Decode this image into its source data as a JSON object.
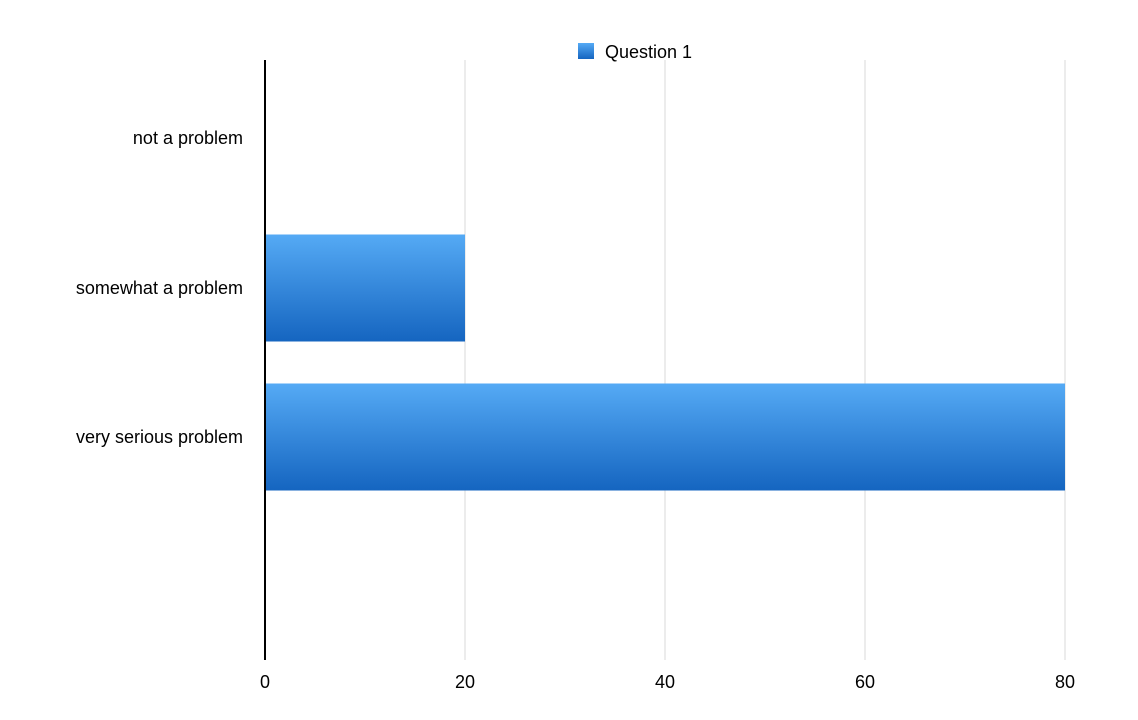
{
  "chart_data": {
    "type": "bar",
    "orientation": "horizontal",
    "title": "",
    "xlabel": "",
    "ylabel": "",
    "categories": [
      "not a problem",
      "somewhat a problem",
      "very serious problem"
    ],
    "series": [
      {
        "name": "Question 1",
        "values": [
          0,
          20,
          80
        ],
        "color_light": "#55aaf5",
        "color_dark": "#1565c0"
      }
    ],
    "xlim": [
      0,
      80
    ],
    "xticks": [
      0,
      20,
      40,
      60,
      80
    ],
    "grid": true,
    "legend_position": "top-center"
  }
}
